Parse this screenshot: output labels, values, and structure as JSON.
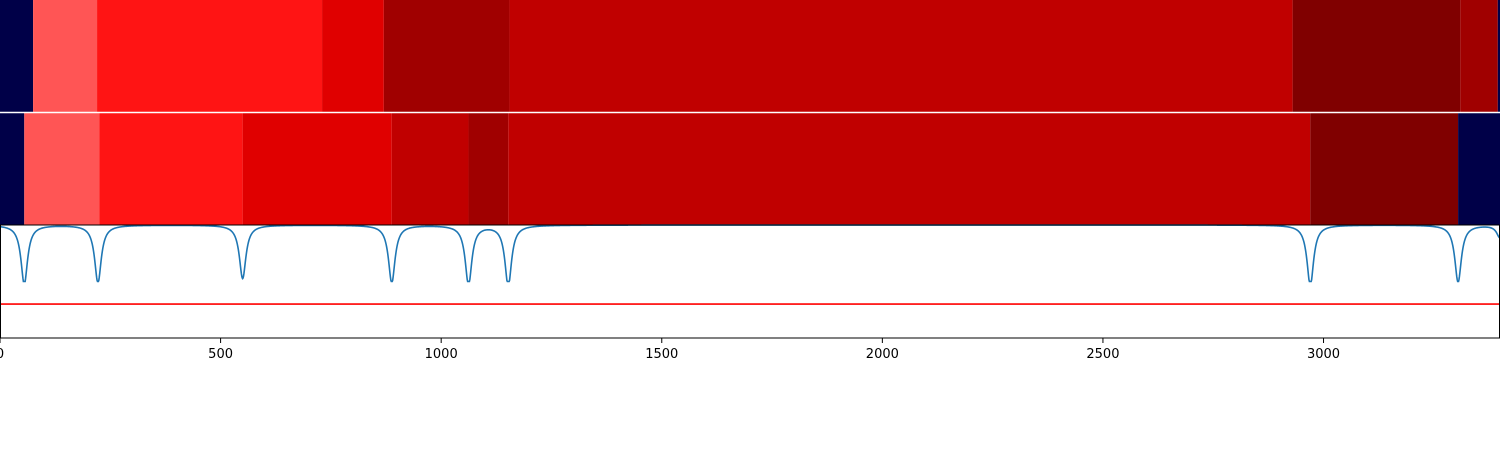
{
  "chart_data": {
    "type": "heatmap",
    "xlim": [
      0,
      3400
    ],
    "xticks": [
      0,
      500,
      1000,
      1500,
      2000,
      2500,
      3000
    ],
    "xtick_labels": [
      "0",
      "500",
      "1000",
      "1500",
      "2000",
      "2500",
      "3000"
    ],
    "rows": [
      {
        "segments": [
          {
            "start": 0,
            "end": 75,
            "color": "#000048"
          },
          {
            "start": 75,
            "end": 220,
            "color": "#ff5555"
          },
          {
            "start": 220,
            "end": 730,
            "color": "#ff1414"
          },
          {
            "start": 730,
            "end": 870,
            "color": "#e00000"
          },
          {
            "start": 870,
            "end": 1155,
            "color": "#a00000"
          },
          {
            "start": 1155,
            "end": 2930,
            "color": "#c00000"
          },
          {
            "start": 2930,
            "end": 3310,
            "color": "#800000"
          },
          {
            "start": 3310,
            "end": 3395,
            "color": "#a00000"
          },
          {
            "start": 3395,
            "end": 3400,
            "color": "#000048"
          }
        ]
      },
      {
        "segments": [
          {
            "start": 0,
            "end": 55,
            "color": "#000048"
          },
          {
            "start": 55,
            "end": 225,
            "color": "#ff5555"
          },
          {
            "start": 225,
            "end": 550,
            "color": "#ff1414"
          },
          {
            "start": 550,
            "end": 888,
            "color": "#e00000"
          },
          {
            "start": 888,
            "end": 1062,
            "color": "#c00000"
          },
          {
            "start": 1062,
            "end": 1152,
            "color": "#a00000"
          },
          {
            "start": 1152,
            "end": 2970,
            "color": "#c00000"
          },
          {
            "start": 2970,
            "end": 3305,
            "color": "#800000"
          },
          {
            "start": 3305,
            "end": 3400,
            "color": "#000048"
          }
        ]
      }
    ],
    "signal": {
      "color": "#1f77b4",
      "dips": [
        {
          "x": 55,
          "depth": 0.95
        },
        {
          "x": 222,
          "depth": 0.93
        },
        {
          "x": 550,
          "depth": 0.86
        },
        {
          "x": 888,
          "depth": 0.93
        },
        {
          "x": 1062,
          "depth": 0.96
        },
        {
          "x": 1152,
          "depth": 0.98
        },
        {
          "x": 2970,
          "depth": 0.98
        },
        {
          "x": 3305,
          "depth": 0.92
        },
        {
          "x": 3400,
          "depth": 0.2
        }
      ]
    },
    "threshold": {
      "value": 0.3,
      "color": "#ff0000"
    }
  }
}
